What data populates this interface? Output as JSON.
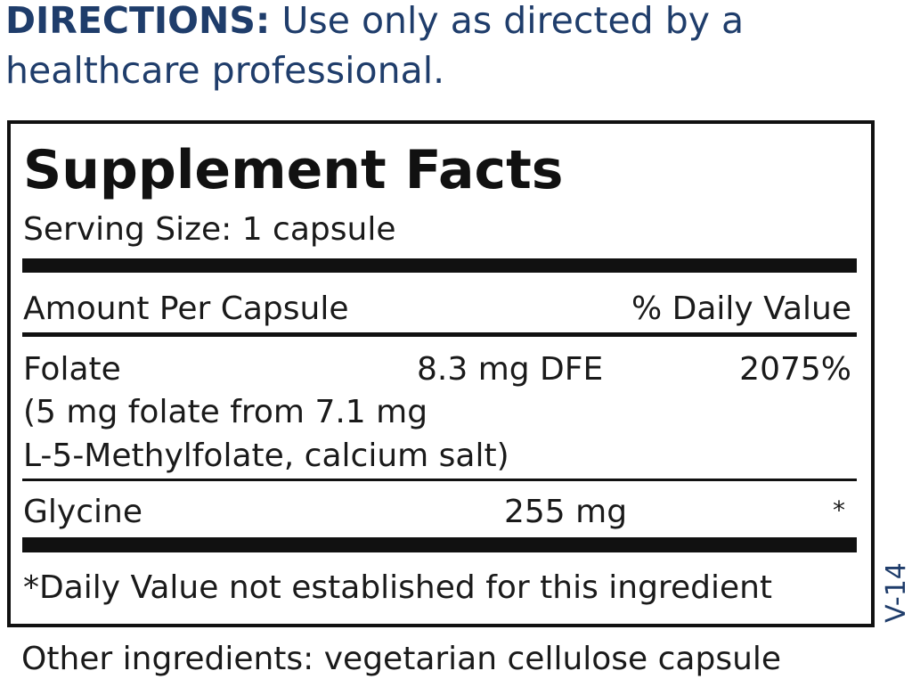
{
  "directions": {
    "label": "DIRECTIONS:",
    "text_line1": "Use only as directed by a",
    "text_line2": "healthcare professional."
  },
  "facts": {
    "title": "Supplement Facts",
    "serving_size": "Serving Size: 1 capsule",
    "header_left": "Amount Per Capsule",
    "header_right": "% Daily Value",
    "rows": [
      {
        "name": "Folate",
        "amount": "8.3 mg DFE",
        "dv": "2075%",
        "detail_line1": "(5 mg folate from 7.1 mg",
        "detail_line2": "L-5-Methylfolate, calcium salt)"
      },
      {
        "name": "Glycine",
        "amount": "255 mg",
        "dv": "*"
      }
    ],
    "footnote": "*Daily Value not established for this ingredient"
  },
  "other_ingredients": "Other ingredients: vegetarian cellulose capsule",
  "version_code": "V-14",
  "colors": {
    "brand_blue": "#1f3d6b",
    "text": "#1a1a1a"
  }
}
